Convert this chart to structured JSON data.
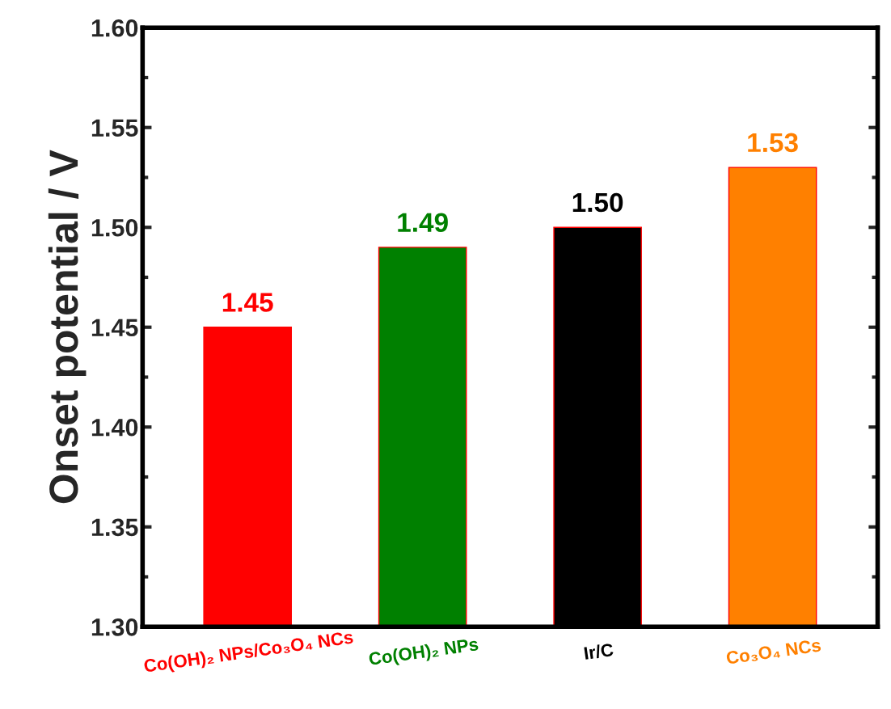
{
  "chart_data": {
    "type": "bar",
    "ylabel": "Onset potential / V",
    "categories": [
      "Co(OH)₂ NPs/Co₃O₄ NCs",
      "Co(OH)₂ NPs",
      "Ir/C",
      "Co₃O₄ NCs"
    ],
    "values": [
      1.45,
      1.49,
      1.5,
      1.53
    ],
    "colors": [
      "#ff0000",
      "#008000",
      "#000000",
      "#ff8000"
    ],
    "ylim": [
      1.3,
      1.6
    ],
    "yticks": [
      "1.30",
      "1.35",
      "1.40",
      "1.45",
      "1.50",
      "1.55",
      "1.60"
    ],
    "value_labels": [
      "1.45",
      "1.49",
      "1.50",
      "1.53"
    ],
    "grid": false,
    "legend": false
  }
}
